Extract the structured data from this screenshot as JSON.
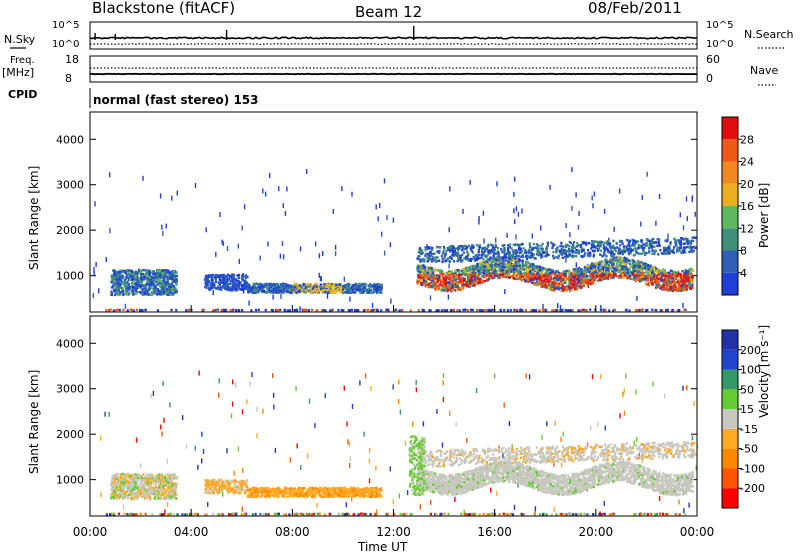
{
  "header": {
    "station": "Blackstone (fitACF)",
    "beam": "Beam 12",
    "date": "08/Feb/2011"
  },
  "summary_panel": {
    "nsky_label": "N.Sky",
    "nsky_scale_top": "10^5",
    "nsky_scale_bottom": "10^0",
    "nsearch_label": "N.Search",
    "nsearch_scale_top": "10^5",
    "nsearch_scale_bottom": "10^0",
    "freq_label": "Freq.",
    "freq_unit": "[MHz]",
    "freq_top": "18",
    "freq_bottom": "8",
    "nave_label": "Nave",
    "nave_top": "60",
    "nave_bottom": "0",
    "cpid_label": "CPID",
    "cpid_text": "normal (fast stereo) 153"
  },
  "colors": {
    "power": [
      "#1f3fd6",
      "#2f5fb8",
      "#3f8f7a",
      "#5fb85f",
      "#e8b020",
      "#f08a20",
      "#f05a18",
      "#e01010"
    ],
    "velocity": [
      "#ff0000",
      "#ff5500",
      "#ff8800",
      "#ffaa22",
      "#c8c8c0",
      "#66cc33",
      "#339966",
      "#2244cc",
      "#2233aa"
    ],
    "ground_scatter": "#c8c8c0"
  },
  "chart_data": [
    {
      "type": "heatmap",
      "name": "power-panel",
      "ylabel": "Slant Range [km]",
      "yticks": [
        1000,
        2000,
        3000,
        4000
      ],
      "ylim": [
        200,
        4600
      ],
      "xlim": [
        0,
        24
      ],
      "colorbar_label": "Power [dB]",
      "colorbar_ticks": [
        "4",
        "8",
        "12",
        "16",
        "20",
        "24",
        "28"
      ]
    },
    {
      "type": "heatmap",
      "name": "velocity-panel",
      "ylabel": "Slant Range [km]",
      "yticks": [
        1000,
        2000,
        3000,
        4000
      ],
      "ylim": [
        200,
        4600
      ],
      "xlim": [
        0,
        24
      ],
      "xlabel": "Time UT",
      "xticks": [
        "00:00",
        "04:00",
        "08:00",
        "12:00",
        "16:00",
        "20:00",
        "00:00"
      ],
      "colorbar_label": "Velocity [m s⁻¹]",
      "colorbar_ticks": [
        "-200",
        "-100",
        "-50",
        "-15",
        "15",
        "50",
        "100",
        "200"
      ]
    }
  ]
}
